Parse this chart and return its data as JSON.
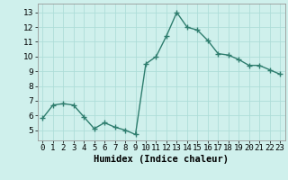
{
  "x": [
    0,
    1,
    2,
    3,
    4,
    5,
    6,
    7,
    8,
    9,
    10,
    11,
    12,
    13,
    14,
    15,
    16,
    17,
    18,
    19,
    20,
    21,
    22,
    23
  ],
  "y": [
    5.8,
    6.7,
    6.8,
    6.7,
    5.9,
    5.1,
    5.5,
    5.2,
    5.0,
    4.7,
    9.5,
    10.0,
    11.4,
    13.0,
    12.0,
    11.8,
    11.1,
    10.2,
    10.1,
    9.8,
    9.4,
    9.4,
    9.1,
    8.8
  ],
  "line_color": "#2e7d6e",
  "marker": "+",
  "marker_size": 4,
  "bg_color": "#cff0ec",
  "grid_color": "#aeddd8",
  "xlabel": "Humidex (Indice chaleur)",
  "xlim": [
    -0.5,
    23.5
  ],
  "ylim": [
    4.3,
    13.6
  ],
  "yticks": [
    5,
    6,
    7,
    8,
    9,
    10,
    11,
    12,
    13
  ],
  "xtick_labels": [
    "0",
    "1",
    "2",
    "3",
    "4",
    "5",
    "6",
    "7",
    "8",
    "9",
    "10",
    "11",
    "12",
    "13",
    "14",
    "15",
    "16",
    "17",
    "18",
    "19",
    "20",
    "21",
    "22",
    "23"
  ],
  "tick_fontsize": 6.5,
  "xlabel_fontsize": 7.5,
  "linewidth": 1.0
}
